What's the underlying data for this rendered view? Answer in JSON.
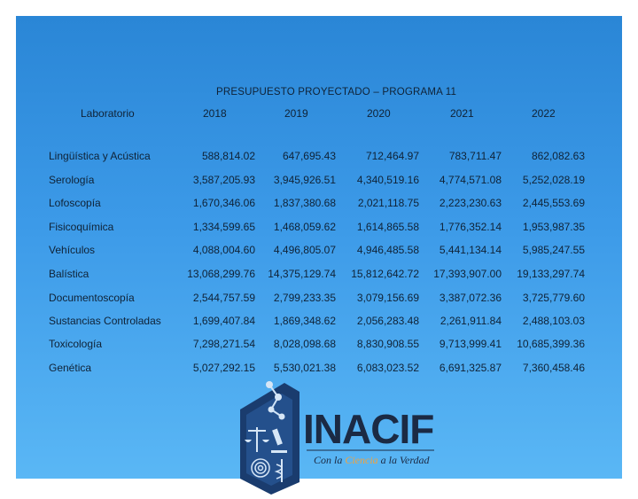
{
  "title": "PRESUPUESTO PROYECTADO – PROGRAMA 11",
  "header": {
    "label": "Laboratorio",
    "years": [
      "2018",
      "2019",
      "2020",
      "2021",
      "2022"
    ]
  },
  "rows": [
    {
      "lab": "Lingüística y Acústica",
      "vals": [
        "588,814.02",
        "647,695.43",
        "712,464.97",
        "783,711.47",
        "862,082.63"
      ]
    },
    {
      "lab": "Serología",
      "vals": [
        "3,587,205.93",
        "3,945,926.51",
        "4,340,519.16",
        "4,774,571.08",
        "5,252,028.19"
      ]
    },
    {
      "lab": "Lofoscopía",
      "vals": [
        "1,670,346.06",
        "1,837,380.68",
        "2,021,118.75",
        "2,223,230.63",
        "2,445,553.69"
      ]
    },
    {
      "lab": "Fisicoquímica",
      "vals": [
        "1,334,599.65",
        "1,468,059.62",
        "1,614,865.58",
        "1,776,352.14",
        "1,953,987.35"
      ]
    },
    {
      "lab": "Vehículos",
      "vals": [
        "4,088,004.60",
        "4,496,805.07",
        "4,946,485.58",
        "5,441,134.14",
        "5,985,247.55"
      ]
    },
    {
      "lab": "Balística",
      "vals": [
        "13,068,299.76",
        "14,375,129.74",
        "15,812,642.72",
        "17,393,907.00",
        "19,133,297.74"
      ]
    },
    {
      "lab": "Documentoscopía",
      "vals": [
        "2,544,757.59",
        "2,799,233.35",
        "3,079,156.69",
        "3,387,072.36",
        "3,725,779.60"
      ]
    },
    {
      "lab": "Sustancias Controladas",
      "vals": [
        "1,699,407.84",
        "1,869,348.62",
        "2,056,283.48",
        "2,261,911.84",
        "2,488,103.03"
      ]
    },
    {
      "lab": "Toxicología",
      "vals": [
        "7,298,271.54",
        "8,028,098.68",
        "8,830,908.55",
        "9,713,999.41",
        "10,685,399.36"
      ]
    },
    {
      "lab": "Genética",
      "vals": [
        "5,027,292.15",
        "5,530,021.38",
        "6,083,023.52",
        "6,691,325.87",
        "7,360,458.46"
      ]
    }
  ],
  "logo": {
    "name": "INACIF",
    "tagline_parts": [
      "Con la ",
      "Ciencia",
      " a la Verdad"
    ],
    "colors": {
      "navy": "#1a3c6e",
      "accent": "#f4a23a",
      "text": "#1b2a44"
    }
  }
}
